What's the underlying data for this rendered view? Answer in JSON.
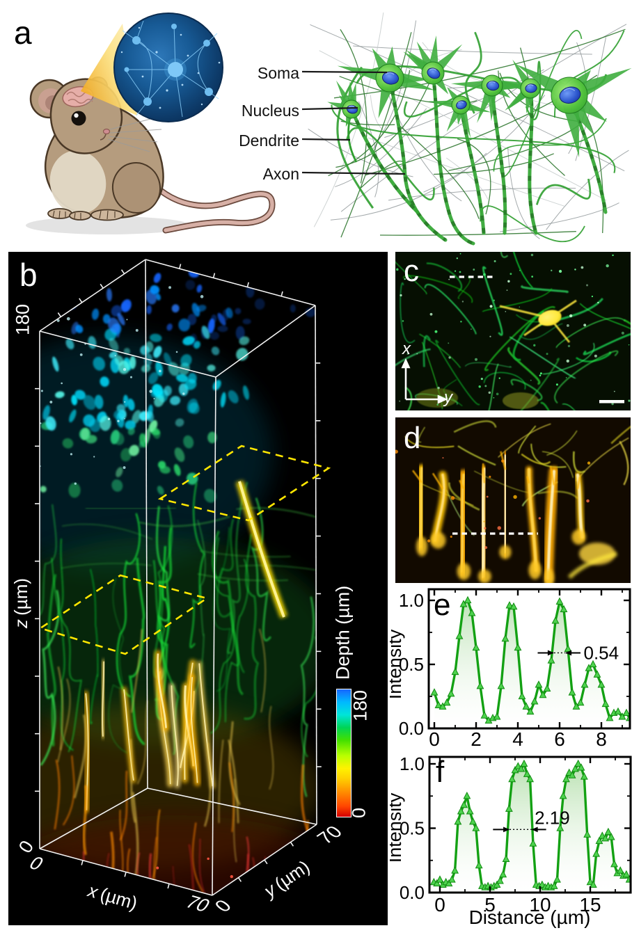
{
  "figure": {
    "panel_a": {
      "letter": "a",
      "annotations": [
        {
          "label": "Soma"
        },
        {
          "label": "Nucleus"
        },
        {
          "label": "Dendrite"
        },
        {
          "label": "Axon"
        }
      ]
    },
    "panel_b": {
      "letter": "b",
      "z_axis": {
        "label_letter": "z",
        "label_unit": "(µm)",
        "max": "180",
        "min": "0"
      },
      "x_axis": {
        "label_letter": "x",
        "label_unit": "(µm)",
        "min": "0",
        "max": "70"
      },
      "y_axis": {
        "label_letter": "y",
        "label_unit": "(µm)",
        "min": "0",
        "max": "70"
      },
      "colorbar": {
        "title": "Depth (µm)",
        "max": "180",
        "min": "0",
        "colors_bottom_to_top": [
          "#d40000",
          "#ff9100",
          "#fff200",
          "#44e000",
          "#00e5d8",
          "#1766ff"
        ]
      }
    },
    "panel_c": {
      "letter": "c",
      "x_arrow_label": "x",
      "y_arrow_label": "y"
    },
    "panel_d": {
      "letter": "d"
    },
    "panel_e": {
      "letter": "e"
    },
    "panel_f": {
      "letter": "f"
    }
  },
  "chart_data": [
    {
      "type": "area",
      "panel": "e",
      "title": "",
      "xlabel": "",
      "ylabel": "Intensity",
      "xlim": [
        -0.2,
        9.37
      ],
      "ylim": [
        0,
        1.09
      ],
      "grid": false,
      "line_color": "#13a113",
      "marker": "triangle-up",
      "marker_fill": "#4ed24e",
      "xticks": [
        {
          "v": 0,
          "label": "0"
        },
        {
          "v": 2,
          "label": "2"
        },
        {
          "v": 4,
          "label": "4"
        },
        {
          "v": 6,
          "label": "6"
        },
        {
          "v": 8,
          "label": "8"
        }
      ],
      "xminor": [
        1,
        3,
        5,
        7,
        9
      ],
      "yticks": [
        {
          "v": 0,
          "label": "0.0"
        },
        {
          "v": 0.5,
          "label": "0.5"
        },
        {
          "v": 1,
          "label": "1.0"
        }
      ],
      "yminor": [
        0.25,
        0.75
      ],
      "annotation": {
        "text": "0.54",
        "y": 0.59,
        "x_left": 5.73,
        "x_right": 6.27,
        "tail_left": 4.95,
        "tail_right": 7.0,
        "label_x": 7.15
      },
      "x": [
        0,
        0.2,
        0.4,
        0.6,
        0.8,
        1.0,
        1.2,
        1.4,
        1.6,
        1.8,
        2.0,
        2.2,
        2.4,
        2.6,
        2.8,
        3.0,
        3.2,
        3.4,
        3.6,
        3.8,
        4.0,
        4.2,
        4.4,
        4.6,
        4.8,
        5.0,
        5.2,
        5.4,
        5.6,
        5.8,
        6.0,
        6.2,
        6.4,
        6.6,
        6.8,
        7.0,
        7.2,
        7.4,
        7.6,
        7.8,
        8.0,
        8.2,
        8.4,
        8.6,
        8.8,
        9.0,
        9.2,
        9.35
      ],
      "y": [
        0.28,
        0.18,
        0.17,
        0.2,
        0.27,
        0.44,
        0.72,
        0.97,
        1.0,
        0.9,
        0.63,
        0.33,
        0.1,
        0.06,
        0.08,
        0.09,
        0.33,
        0.7,
        0.96,
        0.95,
        0.63,
        0.25,
        0.17,
        0.13,
        0.21,
        0.34,
        0.26,
        0.31,
        0.53,
        0.84,
        0.99,
        0.93,
        0.62,
        0.28,
        0.17,
        0.2,
        0.34,
        0.47,
        0.5,
        0.42,
        0.34,
        0.19,
        0.08,
        0.12,
        0.13,
        0.09,
        0.12,
        0.08
      ]
    },
    {
      "type": "area",
      "panel": "f",
      "title": "",
      "xlabel": "Distance (µm)",
      "ylabel": "Intensity",
      "xlim": [
        -1.04,
        19.0
      ],
      "ylim": [
        0,
        1.05
      ],
      "grid": false,
      "line_color": "#13a113",
      "marker": "triangle-up",
      "marker_fill": "#4ed24e",
      "xticks": [
        {
          "v": 0,
          "label": "0"
        },
        {
          "v": 5,
          "label": "5"
        },
        {
          "v": 10,
          "label": "10"
        },
        {
          "v": 15,
          "label": "15"
        }
      ],
      "xminor": [
        2.5,
        7.5,
        12.5,
        17.5
      ],
      "yticks": [
        {
          "v": 0,
          "label": "0.0"
        },
        {
          "v": 0.5,
          "label": "0.5"
        },
        {
          "v": 1,
          "label": "1.0"
        }
      ],
      "yminor": [
        0.25,
        0.75
      ],
      "annotation": {
        "text": "2.19",
        "y": 0.49,
        "x_left": 6.95,
        "x_right": 9.14,
        "tail_left": 5.3,
        "tail_right": 10.6,
        "label_x": 9.45
      },
      "x": [
        -0.6,
        -0.3,
        0.0,
        0.3,
        0.6,
        0.9,
        1.2,
        1.5,
        1.8,
        2.1,
        2.4,
        2.7,
        3.0,
        3.3,
        3.6,
        3.9,
        4.2,
        4.5,
        4.8,
        5.1,
        5.4,
        5.7,
        6.0,
        6.3,
        6.6,
        6.9,
        7.2,
        7.5,
        7.8,
        8.1,
        8.4,
        8.7,
        9.0,
        9.3,
        9.6,
        9.9,
        10.2,
        10.5,
        10.8,
        11.1,
        11.4,
        11.7,
        12.0,
        12.3,
        12.6,
        12.9,
        13.2,
        13.5,
        13.8,
        14.1,
        14.4,
        14.7,
        15.0,
        15.3,
        15.6,
        15.9,
        16.2,
        16.5,
        16.8,
        17.1,
        17.4,
        17.7,
        18.0,
        18.3,
        18.6,
        18.9
      ],
      "y": [
        0.08,
        0.07,
        0.1,
        0.06,
        0.08,
        0.07,
        0.1,
        0.17,
        0.55,
        0.63,
        0.68,
        0.75,
        0.63,
        0.55,
        0.5,
        0.21,
        0.05,
        0.04,
        0.05,
        0.04,
        0.05,
        0.06,
        0.09,
        0.14,
        0.26,
        0.65,
        0.88,
        0.95,
        0.98,
        0.96,
        1.0,
        0.92,
        0.88,
        0.38,
        0.06,
        0.05,
        0.06,
        0.04,
        0.05,
        0.04,
        0.05,
        0.1,
        0.5,
        0.75,
        0.88,
        0.93,
        0.91,
        0.96,
        1.0,
        0.97,
        0.9,
        0.45,
        0.08,
        0.06,
        0.3,
        0.4,
        0.44,
        0.42,
        0.47,
        0.43,
        0.22,
        0.15,
        0.17,
        0.13,
        0.14,
        0.1
      ]
    }
  ]
}
